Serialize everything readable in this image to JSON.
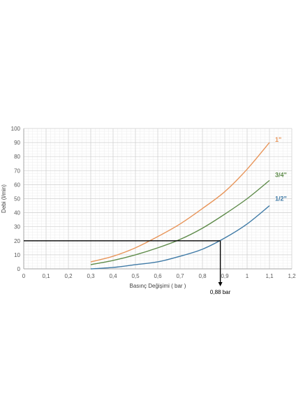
{
  "chart_data": {
    "type": "line",
    "xlabel": "Basınç Değişimi ( bar )",
    "ylabel": "Debi (l/min)",
    "xlim": [
      0,
      1.2
    ],
    "ylim": [
      0,
      100
    ],
    "x_ticks": [
      "0",
      "0,1",
      "0,2",
      "0,3",
      "0,4",
      "0,5",
      "0,6",
      "0,7",
      "0,8",
      "0,9",
      "1",
      "1,1",
      "1,2"
    ],
    "y_ticks": [
      "0",
      "10",
      "20",
      "30",
      "40",
      "50",
      "60",
      "70",
      "80",
      "90",
      "100"
    ],
    "grid": true,
    "legend": "inline-right",
    "x": [
      0.3,
      0.4,
      0.5,
      0.6,
      0.7,
      0.8,
      0.9,
      1.0,
      1.1
    ],
    "series": [
      {
        "name": "1\"",
        "color": "#e8955a",
        "values": [
          5,
          9,
          15,
          23,
          32,
          43,
          55,
          71,
          90
        ]
      },
      {
        "name": "3/4\"",
        "color": "#5e8b4a",
        "values": [
          3,
          6,
          10,
          15,
          21,
          29,
          39,
          50,
          63
        ]
      },
      {
        "name": "1/2\"",
        "color": "#3f7aa6",
        "values": [
          0,
          1,
          3,
          5,
          9,
          14,
          22,
          32,
          45
        ]
      }
    ],
    "annotation": {
      "label": "0,88 bar",
      "x": 0.88,
      "y": 20
    }
  }
}
